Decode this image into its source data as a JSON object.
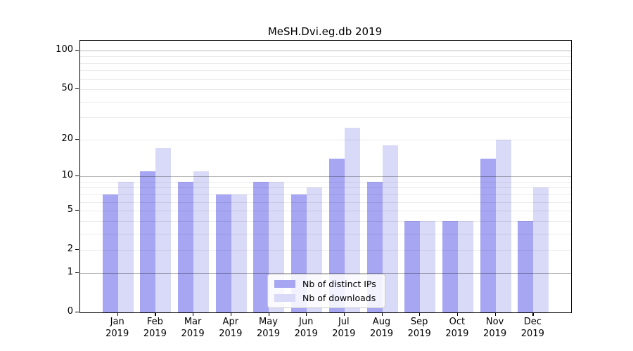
{
  "title": "MeSH.Dvi.eg.db 2019",
  "chart_data": {
    "type": "bar",
    "title": "MeSH.Dvi.eg.db 2019",
    "year": "2019",
    "categories": [
      "Jan",
      "Feb",
      "Mar",
      "Apr",
      "May",
      "Jun",
      "Jul",
      "Aug",
      "Sep",
      "Oct",
      "Nov",
      "Dec"
    ],
    "series": [
      {
        "name": "Nb of distinct IPs",
        "color": "#a6a6f3",
        "values": [
          7,
          11,
          9,
          7,
          9,
          7,
          14,
          9,
          4,
          4,
          14,
          4
        ]
      },
      {
        "name": "Nb of downloads",
        "color": "#d9d9f8",
        "values": [
          9,
          17,
          11,
          7,
          9,
          8,
          25,
          18,
          4,
          4,
          20,
          8
        ]
      }
    ],
    "xlabel": "",
    "ylabel": "",
    "yscale": "log10(1+x)",
    "yticks": [
      0,
      1,
      2,
      5,
      10,
      20,
      50,
      100
    ],
    "minor_gridlines": [
      2,
      3,
      4,
      5,
      6,
      7,
      8,
      9,
      20,
      30,
      40,
      50,
      60,
      70,
      80,
      90
    ],
    "major_gridlines": [
      1,
      10,
      100
    ],
    "ylim": [
      0,
      118
    ],
    "grid": "on",
    "legend_position": "lower center"
  }
}
